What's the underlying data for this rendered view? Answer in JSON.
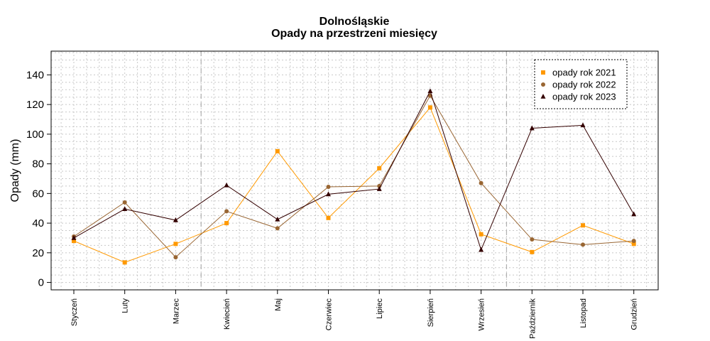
{
  "chart_data": {
    "type": "line",
    "title": "Dolnośląskie",
    "subtitle": "Opady na przestrzeni miesięcy",
    "xlabel": "",
    "ylabel": "Opady (mm)",
    "ylim": [
      -5,
      156
    ],
    "yticks": [
      0,
      20,
      40,
      60,
      80,
      100,
      120,
      140
    ],
    "categories": [
      "Styczeń",
      "Luty",
      "Marzec",
      "Kwiecień",
      "Maj",
      "Czerwiec",
      "Lipiec",
      "Sierpień",
      "Wrzesień",
      "Październik",
      "Listopad",
      "Grudzień"
    ],
    "grid": true,
    "legend_position": "top-right",
    "reference_lines_x": [
      2.5,
      8.5
    ],
    "series": [
      {
        "name": "opady rok 2021",
        "color": "#FF9900",
        "marker": "square",
        "values": [
          28,
          13.5,
          26,
          40,
          88.5,
          43.5,
          77,
          118,
          32.5,
          20.5,
          38.5,
          26
        ]
      },
      {
        "name": "opady rok 2022",
        "color": "#996633",
        "marker": "circle",
        "values": [
          31,
          54,
          17,
          48,
          36.5,
          64.5,
          65,
          126,
          67,
          29,
          25.5,
          28
        ]
      },
      {
        "name": "opady rok 2023",
        "color": "#330000",
        "marker": "triangle",
        "values": [
          30,
          49.5,
          42,
          65.5,
          42.5,
          59.5,
          63,
          129,
          22,
          104,
          106,
          46
        ]
      }
    ]
  }
}
